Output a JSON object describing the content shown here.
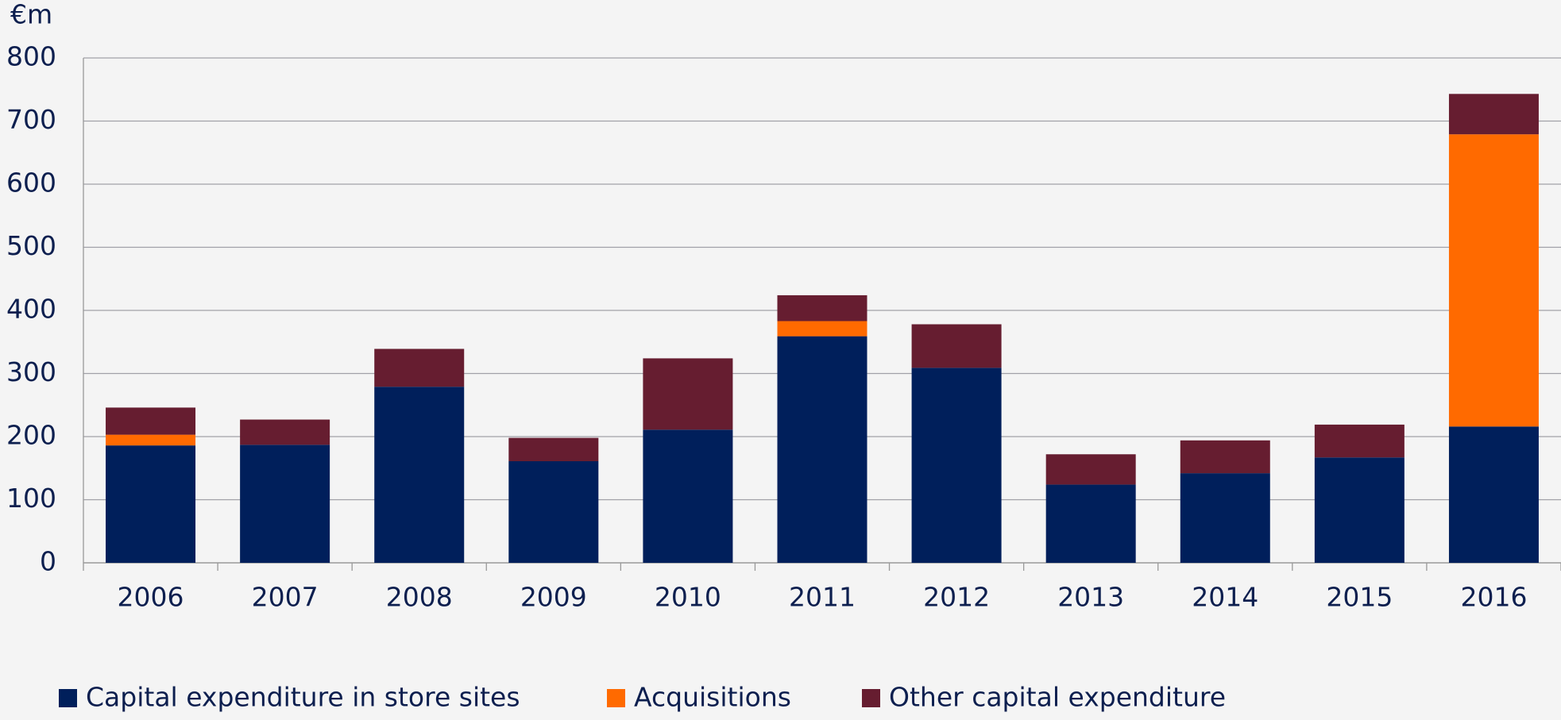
{
  "chart_data": {
    "type": "stacked_bar",
    "y_axis_label": "€m",
    "categories": [
      "2006",
      "2007",
      "2008",
      "2009",
      "2010",
      "2011",
      "2012",
      "2013",
      "2014",
      "2015",
      "2016"
    ],
    "series": [
      {
        "name": "Capital expenditure in store sites",
        "color": "#001f5b",
        "values": [
          186,
          187,
          279,
          161,
          211,
          359,
          309,
          124,
          142,
          167,
          216
        ]
      },
      {
        "name": "Acquisitions",
        "color": "#ff6a00",
        "values": [
          17,
          0,
          0,
          0,
          0,
          24,
          0,
          0,
          0,
          0,
          463
        ]
      },
      {
        "name": "Other capital expenditure",
        "color": "#661d30",
        "values": [
          43,
          40,
          60,
          37,
          113,
          41,
          69,
          48,
          52,
          52,
          64
        ]
      }
    ],
    "ylim": [
      0,
      800
    ],
    "yticks": [
      0,
      100,
      200,
      300,
      400,
      500,
      600,
      700,
      800
    ],
    "grid": true
  }
}
